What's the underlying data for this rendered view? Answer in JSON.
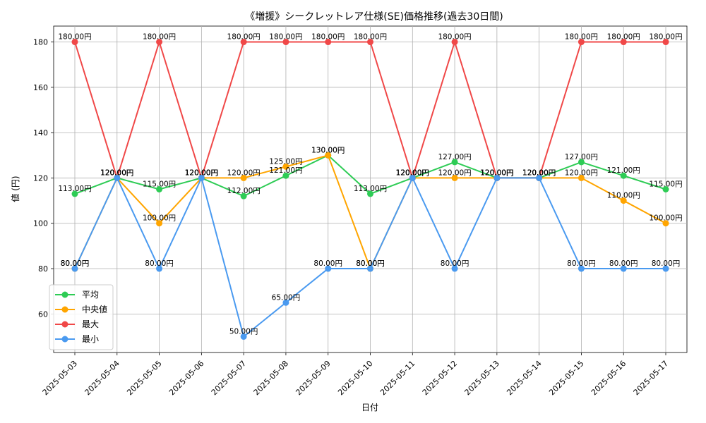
{
  "chart_data": {
    "type": "line",
    "title": "《増援》シークレットレア仕様(SE)価格推移(過去30日間)",
    "xlabel": "日付",
    "ylabel": "値 (円)",
    "ylim": [
      43,
      187
    ],
    "yticks": [
      60,
      80,
      100,
      120,
      140,
      160,
      180
    ],
    "grid": true,
    "legend_position": "lower-left",
    "value_suffix": "円",
    "categories": [
      "2025-05-03",
      "2025-05-04",
      "2025-05-05",
      "2025-05-06",
      "2025-05-07",
      "2025-05-08",
      "2025-05-09",
      "2025-05-10",
      "2025-05-11",
      "2025-05-12",
      "2025-05-13",
      "2025-05-14",
      "2025-05-15",
      "2025-05-16",
      "2025-05-17"
    ],
    "series": [
      {
        "name": "平均",
        "color": "#2ecc55",
        "values": [
          113,
          120,
          115,
          120,
          112,
          121,
          130,
          113,
          120,
          127,
          120,
          120,
          127,
          121,
          115
        ]
      },
      {
        "name": "中央値",
        "color": "#ffa500",
        "values": [
          80,
          120,
          100,
          120,
          120,
          125,
          130,
          80,
          120,
          120,
          120,
          120,
          120,
          110,
          100
        ]
      },
      {
        "name": "最大",
        "color": "#f04848",
        "values": [
          180,
          120,
          180,
          120,
          180,
          180,
          180,
          180,
          120,
          180,
          120,
          120,
          180,
          180,
          180
        ]
      },
      {
        "name": "最小",
        "color": "#4a9af0",
        "values": [
          80,
          120,
          80,
          120,
          50,
          65,
          80,
          80,
          120,
          80,
          120,
          120,
          80,
          80,
          80
        ]
      }
    ]
  }
}
